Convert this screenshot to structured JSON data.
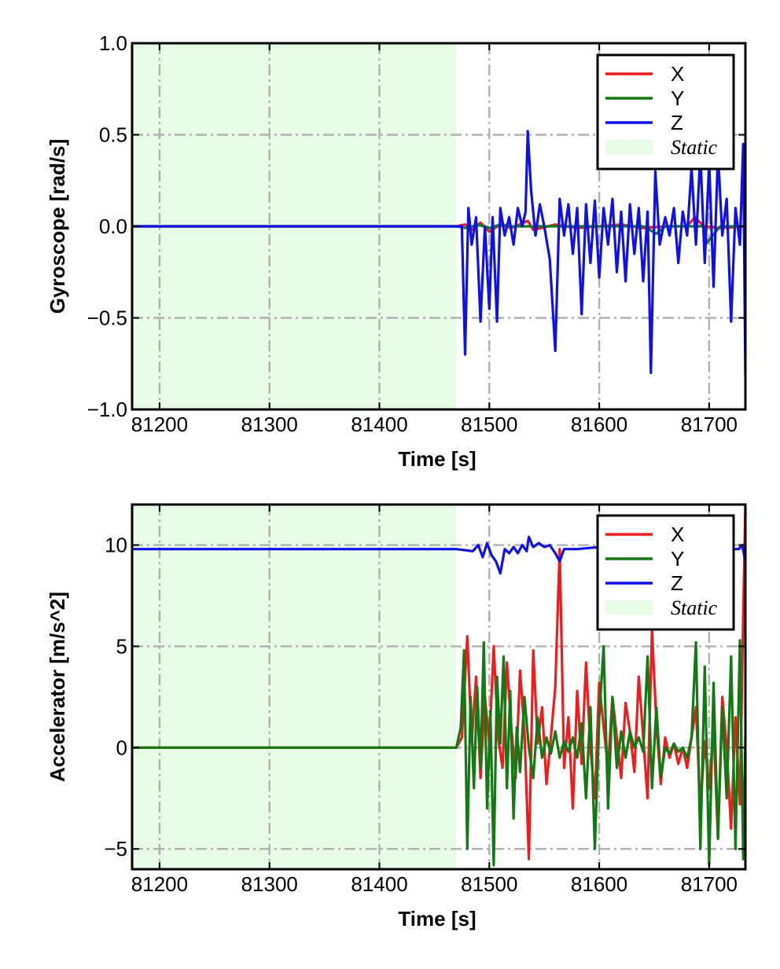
{
  "colors": {
    "X": "#ee1c1c",
    "Y": "#137a13",
    "Z": "#1010e8",
    "static_fill": "#e8fbe6",
    "grid": "#b0b0b0"
  },
  "chart_data": [
    {
      "type": "line",
      "xlabel": "Time [s]",
      "ylabel": "Gyroscope [rad/s]",
      "xlim": [
        81175,
        81733
      ],
      "ylim": [
        -1.0,
        1.0
      ],
      "xticks": [
        81200,
        81300,
        81400,
        81500,
        81600,
        81700
      ],
      "yticks": [
        -1.0,
        -0.5,
        0.0,
        0.5,
        1.0
      ],
      "ytick_labels": [
        "−1.0",
        "−0.5",
        "0.0",
        "0.5",
        "1.0"
      ],
      "grid": true,
      "legend_position": "top-right",
      "legend": [
        "X",
        "Y",
        "Z",
        "Static"
      ],
      "static_region": [
        81175,
        81470
      ],
      "series": [
        {
          "name": "X",
          "x": [
            81175,
            81470,
            81478,
            81485,
            81492,
            81500,
            81510,
            81520,
            81535,
            81540,
            81560,
            81580,
            81600,
            81620,
            81640,
            81660,
            81680,
            81687,
            81695,
            81710,
            81733
          ],
          "y": [
            0.0,
            0.0,
            0.01,
            -0.02,
            0.02,
            -0.03,
            0.01,
            -0.01,
            0.03,
            -0.02,
            0.01,
            -0.01,
            0.0,
            0.01,
            -0.01,
            0.0,
            0.0,
            0.05,
            0.0,
            -0.01,
            0.0
          ]
        },
        {
          "name": "Y",
          "x": [
            81175,
            81470,
            81480,
            81490,
            81500,
            81510,
            81520,
            81540,
            81560,
            81580,
            81600,
            81620,
            81640,
            81652,
            81660,
            81680,
            81695,
            81698,
            81710,
            81733
          ],
          "y": [
            0.0,
            0.0,
            -0.01,
            0.01,
            -0.01,
            0.01,
            0.0,
            0.0,
            0.0,
            0.0,
            0.0,
            0.0,
            0.0,
            -0.04,
            0.0,
            0.0,
            0.0,
            -0.09,
            0.0,
            0.0
          ]
        },
        {
          "name": "Z",
          "x": [
            81175,
            81470,
            81475,
            81478,
            81481,
            81484,
            81488,
            81492,
            81496,
            81500,
            81503,
            81507,
            81510,
            81514,
            81518,
            81522,
            81526,
            81530,
            81533,
            81535,
            81538,
            81542,
            81546,
            81550,
            81555,
            81560,
            81564,
            81568,
            81572,
            81576,
            81580,
            81584,
            81588,
            81592,
            81596,
            81600,
            81604,
            81608,
            81612,
            81616,
            81620,
            81624,
            81628,
            81632,
            81636,
            81640,
            81644,
            81647,
            81651,
            81655,
            81660,
            81664,
            81668,
            81672,
            81676,
            81680,
            81684,
            81688,
            81692,
            81696,
            81700,
            81704,
            81708,
            81712,
            81716,
            81720,
            81724,
            81728,
            81731,
            81733
          ],
          "y": [
            0.0,
            0.0,
            0.0,
            -0.7,
            0.1,
            -0.1,
            0.05,
            -0.52,
            0.0,
            -0.45,
            0.05,
            -0.52,
            0.1,
            -0.05,
            0.05,
            -0.1,
            0.1,
            0.0,
            0.08,
            0.52,
            0.2,
            -0.05,
            0.12,
            0.0,
            -0.18,
            -0.68,
            0.15,
            -0.05,
            0.12,
            -0.15,
            0.1,
            -0.48,
            0.12,
            -0.2,
            0.14,
            -0.28,
            0.1,
            -0.1,
            0.15,
            -0.25,
            0.08,
            -0.3,
            0.12,
            -0.15,
            0.1,
            -0.3,
            0.08,
            -0.8,
            0.3,
            -0.1,
            0.05,
            -0.05,
            0.1,
            -0.2,
            0.08,
            -0.05,
            0.32,
            -0.1,
            0.4,
            -0.2,
            0.35,
            -0.33,
            0.4,
            -0.05,
            0.15,
            -0.52,
            0.1,
            -0.1,
            0.45,
            -0.82
          ]
        }
      ]
    },
    {
      "type": "line",
      "xlabel": "Time [s]",
      "ylabel": "Accelerator [m/s^2]",
      "xlim": [
        81175,
        81733
      ],
      "ylim": [
        -6,
        12
      ],
      "xticks": [
        81200,
        81300,
        81400,
        81500,
        81600,
        81700
      ],
      "yticks": [
        -5,
        0,
        5,
        10
      ],
      "ytick_labels": [
        "−5",
        "0",
        "5",
        "10"
      ],
      "grid": true,
      "legend_position": "top-right",
      "legend": [
        "X",
        "Y",
        "Z",
        "Static"
      ],
      "static_region": [
        81175,
        81470
      ],
      "series": [
        {
          "name": "X",
          "x": [
            81175,
            81470,
            81475,
            81480,
            81484,
            81488,
            81492,
            81496,
            81500,
            81504,
            81508,
            81512,
            81516,
            81520,
            81524,
            81528,
            81532,
            81536,
            81540,
            81544,
            81548,
            81552,
            81556,
            81560,
            81564,
            81568,
            81572,
            81576,
            81580,
            81584,
            81588,
            81592,
            81596,
            81600,
            81604,
            81608,
            81612,
            81616,
            81620,
            81624,
            81628,
            81632,
            81636,
            81640,
            81644,
            81648,
            81652,
            81656,
            81660,
            81664,
            81668,
            81672,
            81676,
            81680,
            81684,
            81688,
            81692,
            81696,
            81700,
            81704,
            81708,
            81712,
            81716,
            81720,
            81724,
            81728,
            81731,
            81733
          ],
          "y": [
            0,
            0,
            0.5,
            5.5,
            0.3,
            3.5,
            -1.5,
            2.5,
            0.2,
            5.0,
            0.5,
            -1.0,
            4.2,
            1.0,
            -1.5,
            3.8,
            0.8,
            -5.5,
            4.8,
            0.2,
            2.0,
            -1.8,
            0.5,
            3.0,
            9.8,
            -1.0,
            1.5,
            -3.0,
            2.8,
            -0.8,
            4.2,
            0.0,
            -2.5,
            3.2,
            1.0,
            -1.0,
            2.5,
            0.5,
            -1.5,
            2.2,
            0.8,
            -1.2,
            3.5,
            0.5,
            -2.5,
            5.8,
            1.2,
            -1.8,
            0.5,
            -0.5,
            0.2,
            -0.8,
            0.0,
            -1.0,
            0.5,
            2.0,
            -3.0,
            0.3,
            -2.0,
            1.0,
            -4.5,
            2.5,
            0.0,
            -4.0,
            1.5,
            -2.8,
            6.5,
            12.0
          ]
        },
        {
          "name": "Y",
          "x": [
            81175,
            81470,
            81474,
            81477,
            81480,
            81483,
            81486,
            81489,
            81492,
            81495,
            81498,
            81501,
            81504,
            81507,
            81510,
            81513,
            81516,
            81519,
            81522,
            81525,
            81528,
            81532,
            81536,
            81540,
            81544,
            81548,
            81552,
            81556,
            81560,
            81564,
            81568,
            81572,
            81576,
            81580,
            81584,
            81588,
            81592,
            81596,
            81600,
            81604,
            81608,
            81612,
            81616,
            81620,
            81624,
            81628,
            81632,
            81636,
            81640,
            81644,
            81648,
            81652,
            81656,
            81660,
            81664,
            81668,
            81672,
            81676,
            81680,
            81684,
            81688,
            81692,
            81696,
            81700,
            81704,
            81708,
            81712,
            81716,
            81720,
            81724,
            81728,
            81731,
            81733
          ],
          "y": [
            0,
            0,
            1.0,
            4.8,
            -5.0,
            2.5,
            -2.0,
            3.0,
            -1.0,
            5.2,
            -3.0,
            1.8,
            -5.8,
            3.5,
            0.2,
            4.5,
            -2.0,
            2.8,
            -3.5,
            1.0,
            -1.2,
            2.5,
            0.0,
            -1.5,
            1.5,
            -0.5,
            0.5,
            -0.3,
            0.8,
            -0.5,
            0.3,
            -0.2,
            0.5,
            -0.5,
            1.2,
            -2.5,
            2.0,
            -5.0,
            1.5,
            5.0,
            -3.0,
            2.5,
            -1.0,
            0.8,
            -0.5,
            0.8,
            0.0,
            0.5,
            -0.2,
            4.5,
            -2.0,
            2.0,
            -1.5,
            0.0,
            -0.3,
            0.2,
            -0.2,
            0.0,
            -0.5,
            0.5,
            5.2,
            -5.0,
            4.0,
            -5.8,
            3.2,
            -4.5,
            2.0,
            -2.5,
            4.5,
            -5.0,
            5.3,
            -5.5,
            0.5
          ]
        },
        {
          "name": "Z",
          "x": [
            81175,
            81470,
            81485,
            81490,
            81494,
            81498,
            81502,
            81506,
            81510,
            81514,
            81518,
            81522,
            81526,
            81530,
            81534,
            81536,
            81540,
            81545,
            81550,
            81555,
            81560,
            81564,
            81568,
            81580,
            81600,
            81640,
            81680,
            81700,
            81720,
            81727,
            81730,
            81733
          ],
          "y": [
            9.8,
            9.8,
            9.7,
            10.0,
            9.4,
            10.1,
            9.5,
            9.2,
            8.6,
            9.8,
            9.6,
            9.9,
            9.6,
            10.0,
            9.7,
            10.4,
            9.9,
            10.1,
            9.9,
            10.0,
            9.6,
            9.2,
            9.8,
            9.8,
            9.9,
            9.8,
            9.8,
            9.8,
            9.8,
            9.8,
            10.0,
            9.2
          ]
        }
      ]
    }
  ]
}
